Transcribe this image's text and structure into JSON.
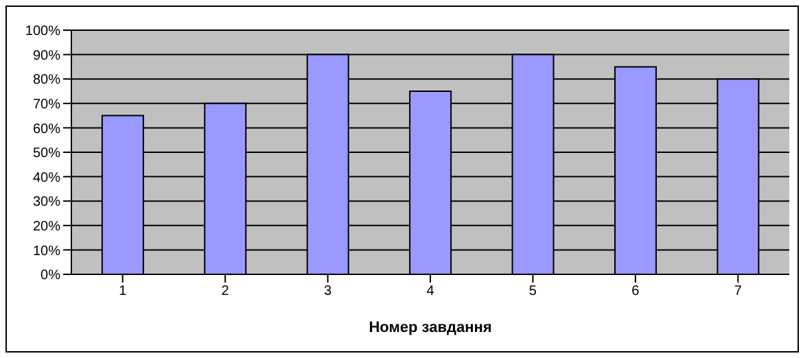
{
  "chart_data": {
    "type": "bar",
    "xlabel": "Номер завдання",
    "categories": [
      "1",
      "2",
      "3",
      "4",
      "5",
      "6",
      "7"
    ],
    "values": [
      65,
      70,
      90,
      75,
      90,
      85,
      80
    ],
    "color": "#9999ff",
    "ylim": [
      0,
      100
    ],
    "yticks": [
      {
        "value": 0,
        "label": "0%"
      },
      {
        "value": 10,
        "label": "10%"
      },
      {
        "value": 20,
        "label": "20%"
      },
      {
        "value": 30,
        "label": "30%"
      },
      {
        "value": 40,
        "label": "40%"
      },
      {
        "value": 50,
        "label": "50%"
      },
      {
        "value": 60,
        "label": "60%"
      },
      {
        "value": 70,
        "label": "70%"
      },
      {
        "value": 80,
        "label": "80%"
      },
      {
        "value": 90,
        "label": "90%"
      },
      {
        "value": 100,
        "label": "100%"
      }
    ],
    "grid": "y",
    "legend": false
  }
}
